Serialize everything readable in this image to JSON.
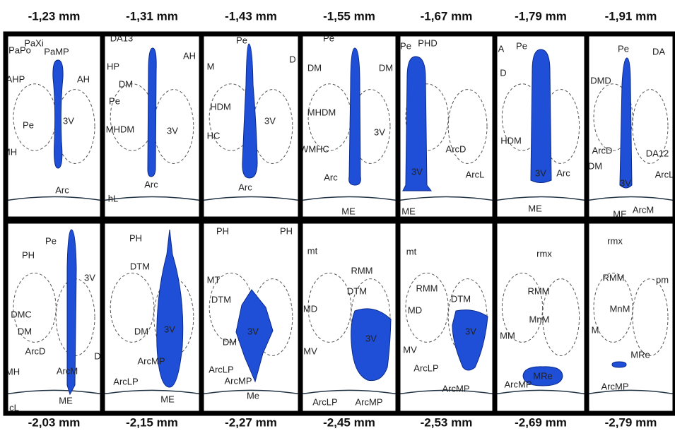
{
  "panels": [
    {
      "section": "-1,23 mm",
      "labels": [
        "PaXi",
        "PaPo",
        "PaMP",
        "AHP",
        "AH",
        "Pe",
        "3V",
        "MH",
        "Arc"
      ]
    },
    {
      "section": "-1,31 mm",
      "labels": [
        "DA13",
        "HP",
        "DM",
        "AH",
        "Pe",
        "MHDM",
        "3V",
        "Arc",
        "hL"
      ]
    },
    {
      "section": "-1,43 mm",
      "labels": [
        "Pe",
        "M",
        "D",
        "HDM",
        "HC",
        "3V",
        "Arc"
      ]
    },
    {
      "section": "-1,55 mm",
      "labels": [
        "Pe",
        "DM",
        "DM",
        "MHDM",
        "3V",
        "WMHC",
        "Arc",
        "ME"
      ]
    },
    {
      "section": "-1,67 mm",
      "labels": [
        "Pe",
        "PHD",
        "ArcD",
        "3V",
        "ArcL",
        "ME"
      ]
    },
    {
      "section": "-1,79 mm",
      "labels": [
        "A",
        "Pe",
        "D",
        "HDM",
        "3V",
        "Arc",
        "ME"
      ]
    },
    {
      "section": "-1,91 mm",
      "labels": [
        "Pe",
        "DA",
        "DMD",
        "ArcD",
        "DA12",
        "DM",
        "3V",
        "ArcL",
        "ME",
        "ArcM"
      ]
    },
    {
      "section": "-2,03 mm",
      "labels": [
        "Pe",
        "PH",
        "3V",
        "DMC",
        "DM",
        "ArcD",
        "MH",
        "ArcM",
        "D",
        "ME",
        "cL"
      ]
    },
    {
      "section": "-2,15 mm",
      "labels": [
        "PH",
        "DTM",
        "DM",
        "3V",
        "ArcMP",
        "ArcLP",
        "ME"
      ]
    },
    {
      "section": "-2,27 mm",
      "labels": [
        "PH",
        "PH",
        "MT",
        "DTM",
        "3V",
        "DM",
        "ArcLP",
        "ArcMP",
        "Me"
      ]
    },
    {
      "section": "-2,45 mm",
      "labels": [
        "mt",
        "RMM",
        "DTM",
        "MD",
        "3V",
        "MV",
        "ArcLP",
        "ArcMP"
      ]
    },
    {
      "section": "-2,53 mm",
      "labels": [
        "mt",
        "RMM",
        "DTM",
        "MD",
        "3V",
        "MV",
        "ArcLP",
        "ArcMP"
      ]
    },
    {
      "section": "-2,69 mm",
      "labels": [
        "rmx",
        "RMM",
        "MnM",
        "MM",
        "MRe",
        "ArcMP"
      ]
    },
    {
      "section": "-2,79 mm",
      "labels": [
        "rmx",
        "RMM",
        "pm",
        "MnM",
        "M",
        "MRe",
        "ArcMP"
      ]
    }
  ]
}
